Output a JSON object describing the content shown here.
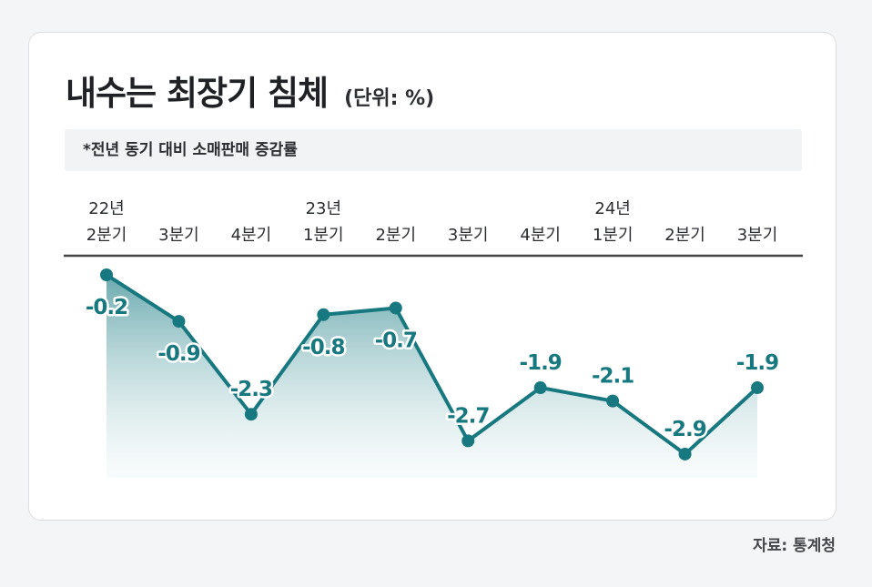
{
  "header": {
    "title": "내수는 최장기 침체",
    "unit": "(단위: %)"
  },
  "note": "*전년 동기 대비 소매판매 증감률",
  "source": "자료: 통계청",
  "colors": {
    "line": "#17787f",
    "fill_top": "#5aa0a5",
    "axis": "#444444",
    "text": "#2b2d31"
  },
  "chart_data": {
    "type": "area",
    "categories": [
      {
        "year": "22년",
        "quarter": "2분기"
      },
      {
        "year": "",
        "quarter": "3분기"
      },
      {
        "year": "",
        "quarter": "4분기"
      },
      {
        "year": "23년",
        "quarter": "1분기"
      },
      {
        "year": "",
        "quarter": "2분기"
      },
      {
        "year": "",
        "quarter": "3분기"
      },
      {
        "year": "",
        "quarter": "4분기"
      },
      {
        "year": "24년",
        "quarter": "1분기"
      },
      {
        "year": "",
        "quarter": "2분기"
      },
      {
        "year": "",
        "quarter": "3분기"
      }
    ],
    "values": [
      -0.2,
      -0.9,
      -2.3,
      -0.8,
      -0.7,
      -2.7,
      -1.9,
      -2.1,
      -2.9,
      -1.9
    ],
    "labels": [
      "-0.2",
      "-0.9",
      "-2.3",
      "-0.8",
      "-0.7",
      "-2.7",
      "-1.9",
      "-2.1",
      "-2.9",
      "-1.9"
    ],
    "label_side": [
      "below",
      "below",
      "above",
      "below",
      "below",
      "above",
      "above",
      "above",
      "above",
      "above"
    ],
    "xlabel": "",
    "ylabel": "",
    "grid": false,
    "legend": "none"
  }
}
